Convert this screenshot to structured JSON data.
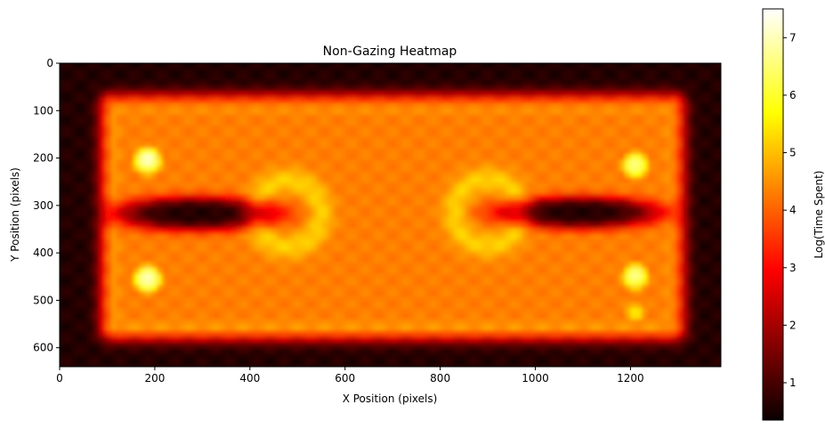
{
  "chart_data": {
    "type": "heatmap",
    "title": "Non-Gazing Heatmap",
    "xlabel": "X Position (pixels)",
    "ylabel": "Y Position (pixels)",
    "colorbar_label": "Log(Time Spent)",
    "colormap": "hot",
    "xlim": [
      0,
      1390
    ],
    "ylim": [
      640,
      0
    ],
    "y_axis_inverted": true,
    "x_ticks": [
      0,
      200,
      400,
      600,
      800,
      1000,
      1200
    ],
    "y_ticks": [
      0,
      100,
      200,
      300,
      400,
      500,
      600
    ],
    "colorbar_range": [
      0.35,
      7.5
    ],
    "colorbar_ticks": [
      1,
      2,
      3,
      4,
      5,
      6,
      7
    ],
    "grid": false,
    "features": {
      "background_value": 0.6,
      "central_region": {
        "x": [
          110,
          1290
        ],
        "y": [
          90,
          560
        ],
        "value": 4.3
      },
      "hotspots": [
        {
          "x": 185,
          "y": 205,
          "value": 7.2
        },
        {
          "x": 185,
          "y": 455,
          "value": 7.2
        },
        {
          "x": 1210,
          "y": 215,
          "value": 6.8
        },
        {
          "x": 1210,
          "y": 450,
          "value": 6.8
        },
        {
          "x": 1210,
          "y": 525,
          "value": 5.5
        }
      ],
      "cold_lobes": [
        {
          "x": [
            90,
            480
          ],
          "y": [
            275,
            360
          ]
        },
        {
          "x": [
            900,
            1290
          ],
          "y": [
            275,
            355
          ]
        }
      ]
    }
  }
}
